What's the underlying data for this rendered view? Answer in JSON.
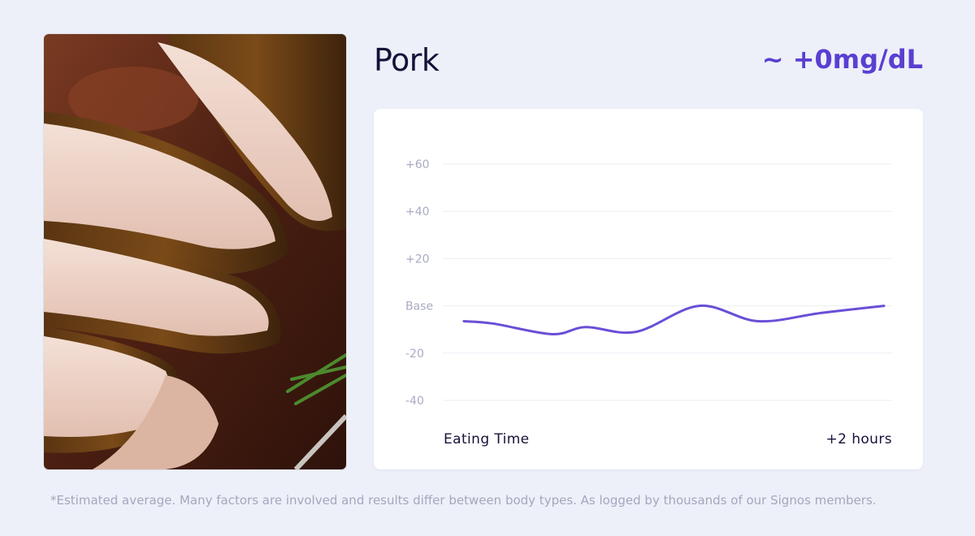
{
  "food": {
    "name": "Pork",
    "glucose_change": "~ +0mg/dL",
    "photo_icon": "roasted-pork-photo"
  },
  "colors": {
    "background": "#edf0f8",
    "accent": "#5a3fd2",
    "line": "#6a4fd6",
    "grid": "#eceef4",
    "tick": "#a9abc2",
    "text": "#15123a"
  },
  "chart_data": {
    "type": "line",
    "title": "",
    "xlabel": "",
    "ylabel": "",
    "x_labels": [
      "Eating Time",
      "+2 hours"
    ],
    "y_ticks": [
      {
        "value": 60,
        "label": "+60"
      },
      {
        "value": 40,
        "label": "+40"
      },
      {
        "value": 20,
        "label": "+20"
      },
      {
        "value": 0,
        "label": "Base"
      },
      {
        "value": -20,
        "label": "-20"
      },
      {
        "value": -40,
        "label": "-40"
      }
    ],
    "ylim": [
      -40,
      60
    ],
    "xlim": [
      0,
      1
    ],
    "grid": true,
    "series": [
      {
        "x": [
          0,
          0.07,
          0.21,
          0.29,
          0.41,
          0.56,
          0.7,
          0.85,
          1.0
        ],
        "values": [
          -6.5,
          -7.5,
          -12,
          -9,
          -11,
          0,
          -6.5,
          -3,
          0
        ]
      }
    ]
  },
  "footnote": "*Estimated average. Many factors are involved and results differ between body types. As logged by thousands of our Signos members."
}
